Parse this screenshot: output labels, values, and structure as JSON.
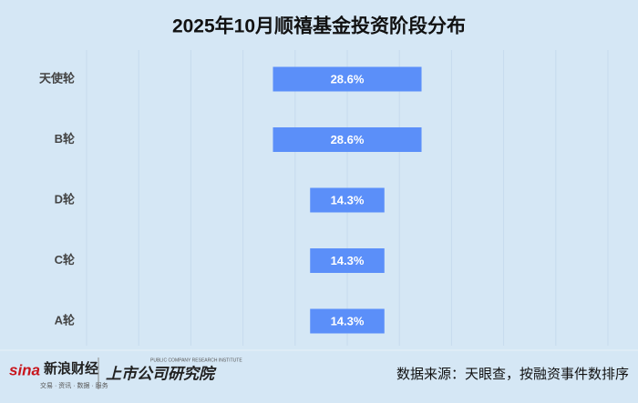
{
  "chart_data": {
    "type": "bar",
    "title": "2025年10月顺禧基金投资阶段分布",
    "categories": [
      "天使轮",
      "B轮",
      "D轮",
      "C轮",
      "A轮"
    ],
    "values": [
      28.6,
      28.6,
      14.3,
      14.3,
      14.3
    ],
    "value_labels": [
      "28.6%",
      "28.6%",
      "14.3%",
      "14.3%",
      "14.3%"
    ],
    "color": "#5b8ff9"
  },
  "footer": {
    "logo": "新浪财经",
    "logo_sub": "交易 · 资讯 · 数据 · 服务",
    "brand": "上市公司研究院",
    "brand_sub": "PUBLIC COMPANY RESEARCH INSTITUTE",
    "source": "数据来源：天眼查，按融资事件数排序"
  }
}
